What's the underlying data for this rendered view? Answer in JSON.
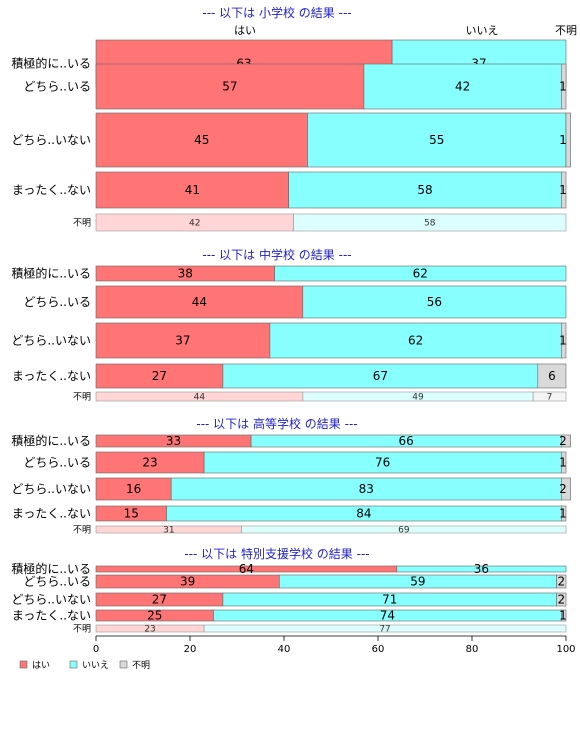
{
  "chart_data": {
    "type": "bar",
    "stacked": true,
    "orientation": "horizontal",
    "series": [
      {
        "name": "はい",
        "color": "#ff7474"
      },
      {
        "name": "いいえ",
        "color": "#88ffff"
      },
      {
        "name": "不明",
        "color": "#d9d9d9"
      }
    ],
    "column_headers": [
      "はい",
      "いいえ",
      "不明"
    ],
    "xlim": [
      0,
      100
    ],
    "x_ticks": [
      "0",
      "20",
      "40",
      "60",
      "80",
      "100"
    ],
    "legend_position": "bottom-left",
    "panels": [
      {
        "title": "--- 以下は 小学校 の結果 ---",
        "categories": [
          "積極的に..いる",
          "どちら..いる",
          "どちら..いない",
          "まったく..ない",
          "不明"
        ],
        "values": [
          [
            63,
            37,
            0
          ],
          [
            57,
            42,
            1
          ],
          [
            45,
            55,
            1
          ],
          [
            41,
            58,
            1
          ],
          [
            42,
            58,
            0
          ]
        ]
      },
      {
        "title": "--- 以下は 中学校 の結果 ---",
        "categories": [
          "積極的に..いる",
          "どちら..いる",
          "どちら..いない",
          "まったく..ない",
          "不明"
        ],
        "values": [
          [
            38,
            62,
            0
          ],
          [
            44,
            56,
            0
          ],
          [
            37,
            62,
            1
          ],
          [
            27,
            67,
            6
          ],
          [
            44,
            49,
            7
          ]
        ]
      },
      {
        "title": "--- 以下は 高等学校 の結果 ---",
        "categories": [
          "積極的に..いる",
          "どちら..いる",
          "どちら..いない",
          "まったく..ない",
          "不明"
        ],
        "values": [
          [
            33,
            66,
            2
          ],
          [
            23,
            76,
            1
          ],
          [
            16,
            83,
            2
          ],
          [
            15,
            84,
            1
          ],
          [
            31,
            69,
            0
          ]
        ]
      },
      {
        "title": "--- 以下は 特別支援学校 の結果 ---",
        "categories": [
          "積極的に..いる",
          "どちら..いる",
          "どちら..いない",
          "まったく..ない",
          "不明"
        ],
        "values": [
          [
            64,
            36,
            0
          ],
          [
            39,
            59,
            2
          ],
          [
            27,
            71,
            2
          ],
          [
            25,
            74,
            1
          ],
          [
            23,
            77,
            0
          ]
        ]
      }
    ]
  }
}
